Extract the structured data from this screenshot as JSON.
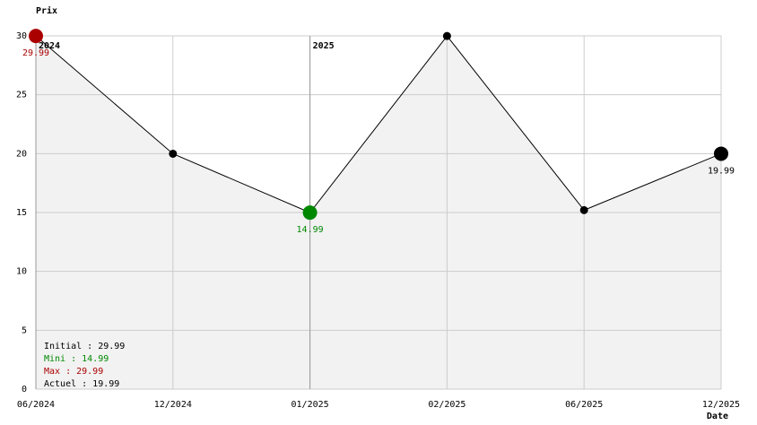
{
  "chart_data": {
    "type": "line",
    "y_label": "Prix",
    "x_label": "Date",
    "categories": [
      "06/2024",
      "12/2024",
      "01/2025",
      "02/2025",
      "06/2025",
      "12/2025"
    ],
    "values": [
      29.99,
      19.99,
      14.99,
      29.99,
      15.2,
      19.99
    ],
    "color": "#000000",
    "area_color": "#f2f2f2",
    "max_color": "#aa0000",
    "min_color": "#008800",
    "last_color": "#000000",
    "ylim": [
      0,
      30
    ],
    "yticks": [
      0,
      5,
      10,
      15,
      20,
      25,
      30
    ],
    "grid": true,
    "annotations": [
      {
        "x": "06/2024",
        "text": "2024"
      },
      {
        "x": "01/2025",
        "text": "2025"
      }
    ],
    "stats": [
      {
        "text": "Initial : 29.99",
        "color": "#000000"
      },
      {
        "text": "Mini : 14.99",
        "color": "#008800"
      },
      {
        "text": "Max : 29.99",
        "color": "#aa0000"
      },
      {
        "text": "Actuel : 19.99",
        "color": "#000000"
      }
    ]
  }
}
